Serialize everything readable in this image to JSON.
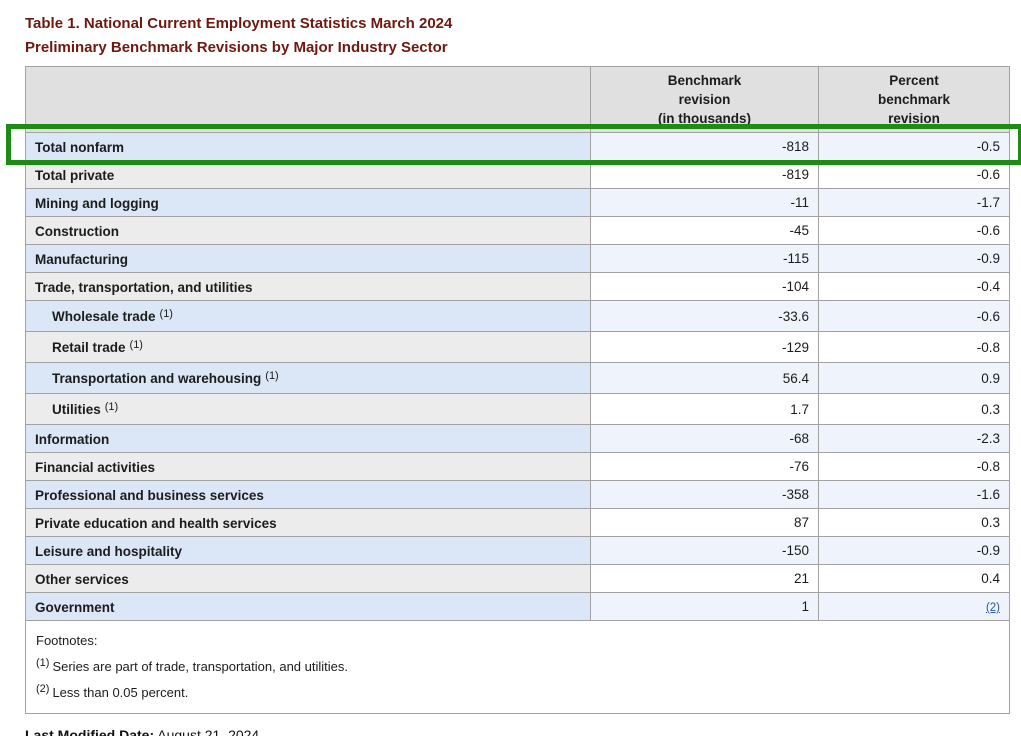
{
  "page": {
    "title_line1": "Table 1. National Current Employment Statistics March 2024",
    "title_line2": "Preliminary Benchmark Revisions by Major Industry Sector",
    "last_modified_label": "Last Modified Date:",
    "last_modified_value": "August 21, 2024"
  },
  "highlight": {
    "color": "#1e8c14",
    "target": "Total nonfarm row"
  },
  "table": {
    "columns": {
      "industry_header": "",
      "benchmark_header": "Benchmark\nrevision\n(in thousands)",
      "percent_header": "Percent\nbenchmark\nrevision"
    },
    "rows": [
      {
        "label": "Total nonfarm",
        "marker": "",
        "benchmark": "-818",
        "percent": "-0.5"
      },
      {
        "label": "Total private",
        "marker": "",
        "benchmark": "-819",
        "percent": "-0.6"
      },
      {
        "label": "Mining and logging",
        "marker": "",
        "benchmark": "-11",
        "percent": "-1.7"
      },
      {
        "label": "Construction",
        "marker": "",
        "benchmark": "-45",
        "percent": "-0.6"
      },
      {
        "label": "Manufacturing",
        "marker": "",
        "benchmark": "-115",
        "percent": "-0.9"
      },
      {
        "label": "Trade, transportation, and utilities",
        "marker": "",
        "benchmark": "-104",
        "percent": "-0.4"
      },
      {
        "label": "Wholesale trade",
        "marker": "(1)",
        "benchmark": "-33.6",
        "percent": "-0.6"
      },
      {
        "label": "Retail trade",
        "marker": "(1)",
        "benchmark": "-129",
        "percent": "-0.8"
      },
      {
        "label": "Transportation and warehousing",
        "marker": "(1)",
        "benchmark": "56.4",
        "percent": "0.9"
      },
      {
        "label": "Utilities",
        "marker": "(1)",
        "benchmark": "1.7",
        "percent": "0.3"
      },
      {
        "label": "Information",
        "marker": "",
        "benchmark": "-68",
        "percent": "-2.3"
      },
      {
        "label": "Financial activities",
        "marker": "",
        "benchmark": "-76",
        "percent": "-0.8"
      },
      {
        "label": "Professional and business services",
        "marker": "",
        "benchmark": "-358",
        "percent": "-1.6"
      },
      {
        "label": "Private education and health services",
        "marker": "",
        "benchmark": "87",
        "percent": "0.3"
      },
      {
        "label": "Leisure and hospitality",
        "marker": "",
        "benchmark": "-150",
        "percent": "-0.9"
      },
      {
        "label": "Other services",
        "marker": "",
        "benchmark": "21",
        "percent": "0.4"
      },
      {
        "label": "Government",
        "marker": "",
        "benchmark": "1",
        "percent": "(2)"
      }
    ],
    "footnotes": {
      "title": "Footnotes:",
      "items": [
        {
          "marker": "(1)",
          "text": "Series are part of trade, transportation, and utilities."
        },
        {
          "marker": "(2)",
          "text": "Less than 0.05 percent."
        }
      ]
    }
  }
}
